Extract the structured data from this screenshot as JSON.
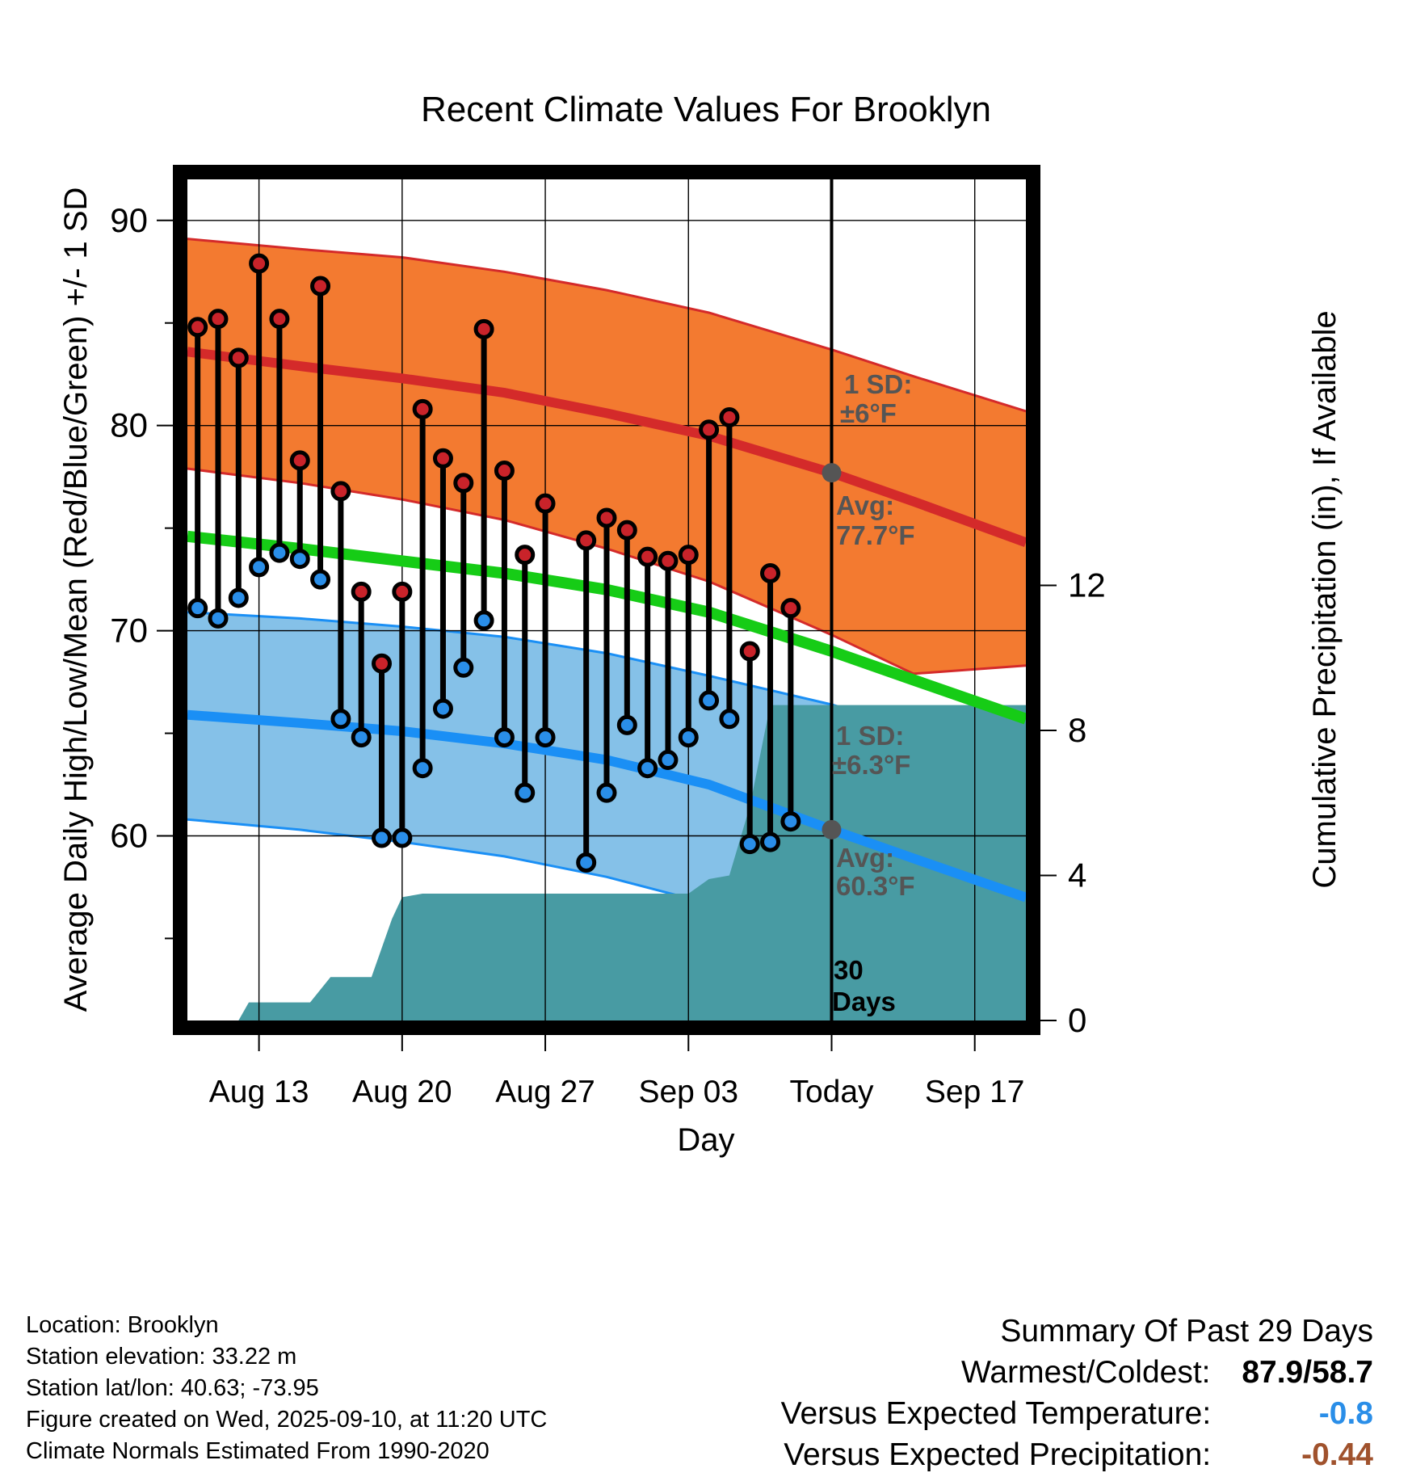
{
  "chart_data": {
    "type": "line",
    "title": "Recent Climate Values For Brooklyn",
    "xlabel": "Day",
    "ylabel": "Average Daily High/Low/Mean (Red/Blue/Green) +/- 1 SD",
    "y2label": "Cumulative Precipitation (in), If Available",
    "xlim": [
      9.5,
      50.5
    ],
    "ylim": [
      51,
      92
    ],
    "y2lim": [
      0,
      23.2
    ],
    "x_tick_positions": [
      13,
      20,
      27,
      34,
      41,
      48
    ],
    "x_tick_labels": [
      "Aug 13",
      "Aug 20",
      "Aug 27",
      "Sep 03",
      "Today",
      "Sep 17"
    ],
    "y_ticks": [
      60,
      70,
      80,
      90
    ],
    "y_minor_ticks": [
      55,
      65,
      75,
      85
    ],
    "y2_ticks": [
      0,
      4,
      8,
      12
    ],
    "today_x": 41,
    "today_label": "Today",
    "daily_x": [
      10,
      11,
      12,
      13,
      14,
      15,
      16,
      17,
      18,
      19,
      20,
      21,
      22,
      23,
      24,
      25,
      26,
      27,
      29,
      30,
      31,
      32,
      33,
      34,
      35,
      36,
      37,
      38,
      39,
      40
    ],
    "daily_high": [
      84.8,
      85.2,
      83.3,
      87.9,
      85.2,
      78.3,
      86.8,
      76.8,
      71.9,
      68.4,
      71.9,
      80.8,
      78.4,
      77.2,
      84.7,
      77.8,
      73.7,
      76.2,
      74.4,
      75.5,
      74.9,
      73.6,
      73.4,
      73.7,
      79.8,
      80.4,
      69.0,
      72.8,
      71.1,
      null
    ],
    "daily_low": [
      71.1,
      70.6,
      71.6,
      73.1,
      73.8,
      73.5,
      72.5,
      65.7,
      64.8,
      59.9,
      59.9,
      63.3,
      66.2,
      68.2,
      70.5,
      64.8,
      62.1,
      64.8,
      58.7,
      62.1,
      65.4,
      63.3,
      63.7,
      64.8,
      66.6,
      65.7,
      59.6,
      59.7,
      60.7,
      null
    ],
    "normal_x": [
      9.5,
      15,
      20,
      25,
      30,
      35,
      41,
      45,
      50.5
    ],
    "normal_high": [
      83.6,
      82.9,
      82.3,
      81.6,
      80.6,
      79.5,
      77.7,
      76.3,
      74.3
    ],
    "normal_high_sd_upper": [
      89.1,
      88.6,
      88.2,
      87.5,
      86.6,
      85.5,
      83.7,
      82.4,
      80.7
    ],
    "normal_high_sd_lower": [
      77.9,
      77.2,
      76.4,
      75.4,
      74.0,
      72.4,
      69.8,
      67.9,
      68.3
    ],
    "normal_mean": [
      74.6,
      74.0,
      73.4,
      72.8,
      72.0,
      70.9,
      69.0,
      67.6,
      65.7
    ],
    "normal_low": [
      65.9,
      65.5,
      65.1,
      64.5,
      63.7,
      62.5,
      60.3,
      58.9,
      57.0
    ],
    "normal_low_sd_upper": [
      70.9,
      70.6,
      70.2,
      69.7,
      68.9,
      67.8,
      66.4,
      65.2,
      63.8
    ],
    "normal_low_sd_lower": [
      60.8,
      60.3,
      59.7,
      59.0,
      58.0,
      56.7,
      54.3,
      52.5,
      51.0
    ],
    "precip_x": [
      9.5,
      12,
      12.5,
      15.5,
      16.5,
      18.5,
      19.5,
      20,
      21,
      25,
      30,
      34,
      35,
      36,
      37,
      38,
      50.5
    ],
    "precip_cum": [
      0,
      0,
      0.5,
      0.5,
      1.2,
      1.2,
      2.8,
      3.4,
      3.5,
      3.5,
      3.5,
      3.5,
      3.9,
      4.0,
      5.9,
      8.7,
      8.7
    ],
    "annotations": {
      "high_sd_label": "1 SD:",
      "high_sd_value": "±6°F",
      "high_avg_label": "Avg:",
      "high_avg_value": "77.7°F",
      "low_sd_label": "1 SD:",
      "low_sd_value": "±6.3°F",
      "low_avg_label": "Avg:",
      "low_avg_value": "60.3°F",
      "period_label_1": "30",
      "period_label_2": "Days"
    },
    "colors": {
      "high_band": "#f37a30",
      "high_line": "#d42a2a",
      "mean_line": "#16cc16",
      "low_band": "#85c1e8",
      "low_line": "#1a8ff5",
      "precip": "#489ba3",
      "high_dot": "#c9232a",
      "low_dot": "#2a8ee8",
      "annotation": "#555555"
    }
  },
  "footer": {
    "location": "Location: Brooklyn",
    "elevation": "Station elevation: 33.22 m",
    "latlon": "Station lat/lon: 40.63; -73.95",
    "created": "Figure created on Wed, 2025-09-10, at 11:20 UTC",
    "normals": "Climate Normals Estimated From 1990-2020"
  },
  "summary": {
    "title": "Summary Of Past 29 Days",
    "warmest_label": "Warmest/Coldest:",
    "warmest_value": "87.9/58.7",
    "temp_label": "Versus Expected Temperature:",
    "temp_value": "-0.8",
    "temp_color": "#2a8ee8",
    "precip_label": "Versus Expected Precipitation:",
    "precip_value": "-0.44",
    "precip_color": "#a0522d"
  }
}
